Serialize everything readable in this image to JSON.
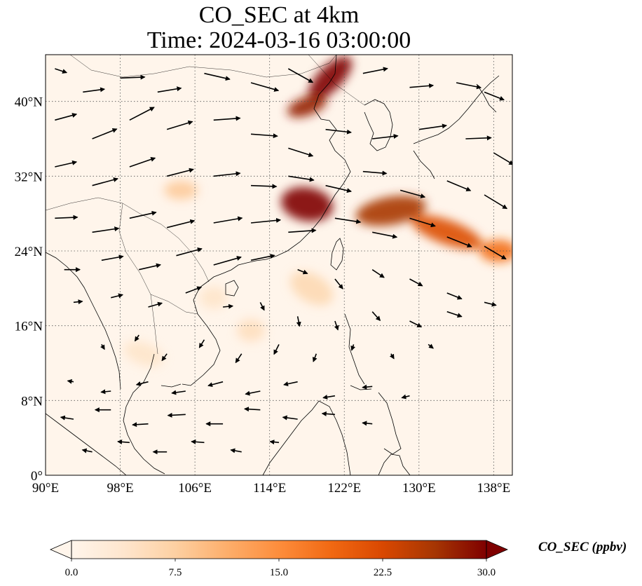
{
  "title": "CO_SEC at 4km",
  "subtitle": "Time: 2024-03-16 03:00:00",
  "map": {
    "lon_range": [
      90,
      140
    ],
    "lat_range": [
      0,
      45
    ],
    "lon_ticks": [
      {
        "value": 90,
        "label": "90°E"
      },
      {
        "value": 98,
        "label": "98°E"
      },
      {
        "value": 106,
        "label": "106°E"
      },
      {
        "value": 114,
        "label": "114°E"
      },
      {
        "value": 122,
        "label": "122°E"
      },
      {
        "value": 130,
        "label": "130°E"
      },
      {
        "value": 138,
        "label": "138°E"
      }
    ],
    "lat_ticks": [
      {
        "value": 0,
        "label": "0°"
      },
      {
        "value": 8,
        "label": "8°N"
      },
      {
        "value": 16,
        "label": "16°N"
      },
      {
        "value": 24,
        "label": "24°N"
      },
      {
        "value": 32,
        "label": "32°N"
      },
      {
        "value": 40,
        "label": "40°N"
      }
    ],
    "gridlines": true,
    "plumes": [
      {
        "lon": 120.5,
        "lat": 42.5,
        "rx": 3.0,
        "ry": 1.3,
        "rot": -45,
        "value": 30
      },
      {
        "lon": 118.0,
        "lat": 39.5,
        "rx": 2.2,
        "ry": 1.0,
        "rot": -20,
        "value": 28
      },
      {
        "lon": 118.0,
        "lat": 29.0,
        "rx": 2.8,
        "ry": 1.8,
        "rot": 10,
        "value": 30
      },
      {
        "lon": 127.0,
        "lat": 28.3,
        "rx": 3.8,
        "ry": 1.5,
        "rot": -10,
        "value": 26
      },
      {
        "lon": 133.0,
        "lat": 26.0,
        "rx": 4.0,
        "ry": 1.3,
        "rot": 20,
        "value": 22
      },
      {
        "lon": 138.5,
        "lat": 24.0,
        "rx": 2.0,
        "ry": 1.2,
        "rot": 0,
        "value": 18
      },
      {
        "lon": 104.5,
        "lat": 30.5,
        "rx": 1.8,
        "ry": 1.0,
        "rot": 0,
        "value": 8
      },
      {
        "lon": 118.5,
        "lat": 20.0,
        "rx": 2.5,
        "ry": 1.5,
        "rot": 30,
        "value": 6
      },
      {
        "lon": 112.0,
        "lat": 15.5,
        "rx": 1.5,
        "ry": 1.2,
        "rot": 0,
        "value": 5
      },
      {
        "lon": 108.0,
        "lat": 19.0,
        "rx": 1.5,
        "ry": 1.2,
        "rot": 0,
        "value": 4
      },
      {
        "lon": 100.5,
        "lat": 13.0,
        "rx": 2.2,
        "ry": 1.2,
        "rot": 20,
        "value": 4
      }
    ],
    "wind_vectors": [
      {
        "lon": 91,
        "lat": 43.5,
        "u": 1.2,
        "v": -0.4
      },
      {
        "lon": 94,
        "lat": 41,
        "u": 2.2,
        "v": 0.3
      },
      {
        "lon": 98,
        "lat": 42.5,
        "u": 2.5,
        "v": 0.1
      },
      {
        "lon": 102,
        "lat": 41,
        "u": 2.4,
        "v": 0.4
      },
      {
        "lon": 107,
        "lat": 43,
        "u": 2.6,
        "v": -0.6
      },
      {
        "lon": 112,
        "lat": 42,
        "u": 2.8,
        "v": -0.8
      },
      {
        "lon": 116,
        "lat": 43.5,
        "u": 2.5,
        "v": -1.4
      },
      {
        "lon": 124,
        "lat": 43,
        "u": 2.5,
        "v": 0.5
      },
      {
        "lon": 129,
        "lat": 41.5,
        "u": 2.4,
        "v": 0.2
      },
      {
        "lon": 134,
        "lat": 42,
        "u": 2.5,
        "v": -0.5
      },
      {
        "lon": 137,
        "lat": 41,
        "u": 2.0,
        "v": -0.8
      },
      {
        "lon": 91,
        "lat": 38,
        "u": 2.2,
        "v": 0.6
      },
      {
        "lon": 95,
        "lat": 36,
        "u": 2.5,
        "v": 1.0
      },
      {
        "lon": 99,
        "lat": 38,
        "u": 2.5,
        "v": 1.3
      },
      {
        "lon": 103,
        "lat": 37,
        "u": 2.6,
        "v": 0.8
      },
      {
        "lon": 108,
        "lat": 38,
        "u": 2.7,
        "v": 0.2
      },
      {
        "lon": 112,
        "lat": 36.5,
        "u": 2.7,
        "v": -0.2
      },
      {
        "lon": 116,
        "lat": 35,
        "u": 2.5,
        "v": -0.8
      },
      {
        "lon": 120,
        "lat": 37,
        "u": 2.6,
        "v": -0.3
      },
      {
        "lon": 125,
        "lat": 36,
        "u": 2.6,
        "v": 0.3
      },
      {
        "lon": 130,
        "lat": 37,
        "u": 2.8,
        "v": 0.4
      },
      {
        "lon": 135,
        "lat": 36,
        "u": 2.6,
        "v": 0.1
      },
      {
        "lon": 138,
        "lat": 34.5,
        "u": 2.0,
        "v": -1.2
      },
      {
        "lon": 91,
        "lat": 33,
        "u": 2.2,
        "v": 0.5
      },
      {
        "lon": 95,
        "lat": 31,
        "u": 2.6,
        "v": 0.7
      },
      {
        "lon": 99,
        "lat": 33,
        "u": 2.6,
        "v": 0.9
      },
      {
        "lon": 103,
        "lat": 32,
        "u": 2.7,
        "v": 0.7
      },
      {
        "lon": 108,
        "lat": 32,
        "u": 2.7,
        "v": 0.3
      },
      {
        "lon": 112,
        "lat": 31,
        "u": 2.6,
        "v": -0.1
      },
      {
        "lon": 116,
        "lat": 32,
        "u": 2.6,
        "v": -0.4
      },
      {
        "lon": 120,
        "lat": 31,
        "u": 2.6,
        "v": -0.6
      },
      {
        "lon": 124,
        "lat": 32.5,
        "u": 2.4,
        "v": -0.2
      },
      {
        "lon": 128,
        "lat": 30.5,
        "u": 2.5,
        "v": -0.7
      },
      {
        "lon": 133,
        "lat": 31.5,
        "u": 2.4,
        "v": -1.0
      },
      {
        "lon": 137,
        "lat": 30,
        "u": 2.3,
        "v": -1.4
      },
      {
        "lon": 91,
        "lat": 27.5,
        "u": 2.3,
        "v": 0.1
      },
      {
        "lon": 95,
        "lat": 26,
        "u": 2.7,
        "v": 0.4
      },
      {
        "lon": 99,
        "lat": 27.5,
        "u": 2.7,
        "v": 0.6
      },
      {
        "lon": 103,
        "lat": 26.5,
        "u": 2.8,
        "v": 0.7
      },
      {
        "lon": 108,
        "lat": 27,
        "u": 2.9,
        "v": 0.5
      },
      {
        "lon": 112,
        "lat": 27,
        "u": 3.0,
        "v": 0.3
      },
      {
        "lon": 116,
        "lat": 26,
        "u": 2.8,
        "v": 0.2
      },
      {
        "lon": 121,
        "lat": 27.5,
        "u": 2.6,
        "v": -0.4
      },
      {
        "lon": 125,
        "lat": 26,
        "u": 2.5,
        "v": -0.5
      },
      {
        "lon": 129,
        "lat": 27.5,
        "u": 2.6,
        "v": -0.8
      },
      {
        "lon": 133,
        "lat": 25.5,
        "u": 2.5,
        "v": -1.0
      },
      {
        "lon": 137,
        "lat": 24.5,
        "u": 2.2,
        "v": -1.3
      },
      {
        "lon": 92,
        "lat": 22,
        "u": 1.6,
        "v": 0.0
      },
      {
        "lon": 96,
        "lat": 23,
        "u": 2.2,
        "v": 0.4
      },
      {
        "lon": 100,
        "lat": 22,
        "u": 2.2,
        "v": 0.5
      },
      {
        "lon": 104,
        "lat": 23.5,
        "u": 2.6,
        "v": 0.7
      },
      {
        "lon": 108,
        "lat": 22.5,
        "u": 2.8,
        "v": 0.8
      },
      {
        "lon": 112,
        "lat": 23,
        "u": 2.4,
        "v": 0.5
      },
      {
        "lon": 117,
        "lat": 22,
        "u": 1.0,
        "v": -0.4
      },
      {
        "lon": 121,
        "lat": 21,
        "u": 0.8,
        "v": -1.0
      },
      {
        "lon": 125,
        "lat": 22,
        "u": 1.2,
        "v": -0.8
      },
      {
        "lon": 129,
        "lat": 21,
        "u": 1.3,
        "v": -0.7
      },
      {
        "lon": 133,
        "lat": 19.5,
        "u": 1.5,
        "v": -0.6
      },
      {
        "lon": 137,
        "lat": 18.5,
        "u": 1.2,
        "v": -0.3
      },
      {
        "lon": 93,
        "lat": 18.5,
        "u": 0.9,
        "v": 0.1
      },
      {
        "lon": 97,
        "lat": 19,
        "u": 1.2,
        "v": 0.3
      },
      {
        "lon": 101,
        "lat": 18,
        "u": 1.4,
        "v": 0.4
      },
      {
        "lon": 105,
        "lat": 19.5,
        "u": 1.6,
        "v": 0.6
      },
      {
        "lon": 109,
        "lat": 18,
        "u": 1.0,
        "v": 0.1
      },
      {
        "lon": 113,
        "lat": 18.5,
        "u": 0.4,
        "v": -0.8
      },
      {
        "lon": 117,
        "lat": 17,
        "u": 0.2,
        "v": -1.0
      },
      {
        "lon": 121,
        "lat": 16.5,
        "u": 0.3,
        "v": -0.9
      },
      {
        "lon": 125,
        "lat": 17.5,
        "u": 0.8,
        "v": -0.9
      },
      {
        "lon": 129,
        "lat": 16.5,
        "u": 1.2,
        "v": -0.6
      },
      {
        "lon": 133,
        "lat": 17.5,
        "u": 1.5,
        "v": -0.5
      },
      {
        "lon": 96,
        "lat": 14,
        "u": 0.3,
        "v": -0.5
      },
      {
        "lon": 100,
        "lat": 15,
        "u": -0.4,
        "v": -0.6
      },
      {
        "lon": 103,
        "lat": 13,
        "u": -0.5,
        "v": -0.7
      },
      {
        "lon": 107,
        "lat": 14.5,
        "u": -0.5,
        "v": -0.8
      },
      {
        "lon": 111,
        "lat": 13,
        "u": -0.6,
        "v": -0.9
      },
      {
        "lon": 115,
        "lat": 14,
        "u": -0.5,
        "v": -1.0
      },
      {
        "lon": 119,
        "lat": 13,
        "u": -0.3,
        "v": -0.8
      },
      {
        "lon": 123,
        "lat": 14,
        "u": -0.2,
        "v": -0.6
      },
      {
        "lon": 127,
        "lat": 13,
        "u": 0.3,
        "v": -0.5
      },
      {
        "lon": 131,
        "lat": 14,
        "u": 0.5,
        "v": -0.4
      },
      {
        "lon": 93,
        "lat": 10,
        "u": -0.6,
        "v": 0.1
      },
      {
        "lon": 97,
        "lat": 9,
        "u": -1.0,
        "v": -0.1
      },
      {
        "lon": 101,
        "lat": 10,
        "u": -1.2,
        "v": -0.3
      },
      {
        "lon": 105,
        "lat": 9,
        "u": -1.4,
        "v": -0.2
      },
      {
        "lon": 109,
        "lat": 10,
        "u": -1.5,
        "v": -0.4
      },
      {
        "lon": 113,
        "lat": 9,
        "u": -1.5,
        "v": -0.3
      },
      {
        "lon": 117,
        "lat": 10,
        "u": -1.4,
        "v": -0.3
      },
      {
        "lon": 121,
        "lat": 8.5,
        "u": -1.2,
        "v": -0.2
      },
      {
        "lon": 125,
        "lat": 9.5,
        "u": -1.0,
        "v": -0.1
      },
      {
        "lon": 129,
        "lat": 8.5,
        "u": -0.8,
        "v": -0.2
      },
      {
        "lon": 93,
        "lat": 6,
        "u": -1.3,
        "v": 0.2
      },
      {
        "lon": 97,
        "lat": 7,
        "u": -1.6,
        "v": 0.0
      },
      {
        "lon": 101,
        "lat": 5.5,
        "u": -1.6,
        "v": -0.1
      },
      {
        "lon": 105,
        "lat": 6.5,
        "u": -1.8,
        "v": -0.1
      },
      {
        "lon": 109,
        "lat": 5.5,
        "u": -1.7,
        "v": 0.0
      },
      {
        "lon": 113,
        "lat": 7,
        "u": -1.6,
        "v": 0.1
      },
      {
        "lon": 117,
        "lat": 6,
        "u": -1.5,
        "v": 0.2
      },
      {
        "lon": 121,
        "lat": 6.5,
        "u": -1.3,
        "v": 0.1
      },
      {
        "lon": 125,
        "lat": 5.5,
        "u": -1.0,
        "v": 0.1
      },
      {
        "lon": 95,
        "lat": 2.5,
        "u": -1.0,
        "v": 0.2
      },
      {
        "lon": 99,
        "lat": 3.5,
        "u": -1.2,
        "v": 0.1
      },
      {
        "lon": 103,
        "lat": 2.5,
        "u": -1.4,
        "v": 0.0
      },
      {
        "lon": 107,
        "lat": 3.5,
        "u": -1.3,
        "v": 0.1
      },
      {
        "lon": 111,
        "lat": 2.5,
        "u": -1.1,
        "v": 0.2
      },
      {
        "lon": 115,
        "lat": 3.5,
        "u": -0.9,
        "v": 0.1
      }
    ]
  },
  "colorbar": {
    "label": "CO_SEC (ppbv)",
    "min": 0,
    "max": 30,
    "extend": "both",
    "ticks": [
      {
        "value": 0,
        "label": "0.0"
      },
      {
        "value": 7.5,
        "label": "7.5"
      },
      {
        "value": 15,
        "label": "15.0"
      },
      {
        "value": 22.5,
        "label": "22.5"
      },
      {
        "value": 30,
        "label": "30.0"
      }
    ],
    "colors": [
      "#fff5eb",
      "#fee6ce",
      "#fdd0a2",
      "#fdae6b",
      "#fd8d3c",
      "#f16913",
      "#d94801",
      "#a63603",
      "#7f0000"
    ]
  }
}
